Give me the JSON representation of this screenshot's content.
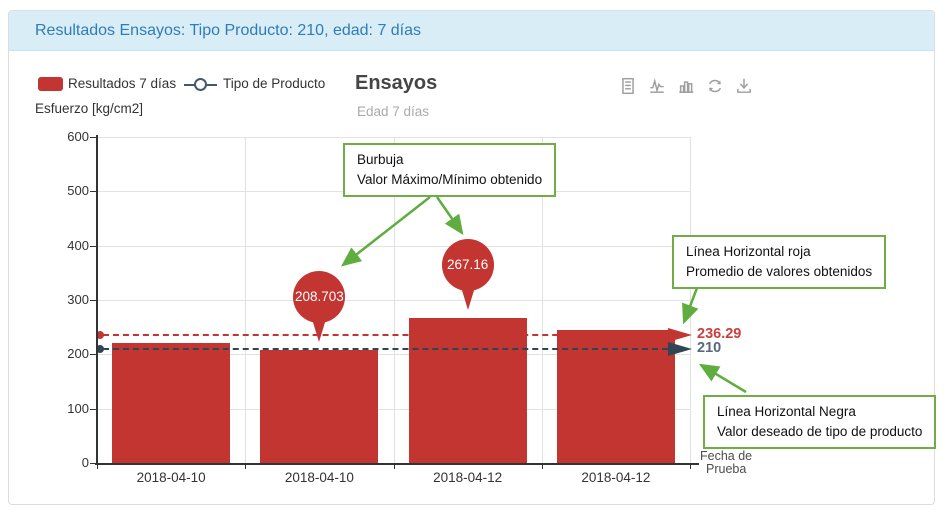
{
  "header": {
    "title": "Resultados Ensayos: Tipo Producto: 210, edad: 7 días"
  },
  "legend": {
    "items": [
      {
        "label": "Resultados 7 días",
        "marker": "bar-swatch",
        "color": "#c23531"
      },
      {
        "label": "Tipo de Producto",
        "marker": "line-circle",
        "color": "#47586e"
      }
    ]
  },
  "chart_header": {
    "title": "Ensayos",
    "subtitle": "Edad 7 días"
  },
  "toolbox": {
    "icons": [
      {
        "name": "data-view"
      },
      {
        "name": "line-chart"
      },
      {
        "name": "bar-chart"
      },
      {
        "name": "restore"
      },
      {
        "name": "save-image"
      }
    ]
  },
  "axes": {
    "y_name": "Esfuerzo [kg/cm2]",
    "x_name_line1": "Fecha de",
    "x_name_line2": "Prueba"
  },
  "chart_data": {
    "type": "bar",
    "title": "Ensayos",
    "subtitle": "Edad 7 días",
    "ylabel": "Esfuerzo [kg/cm2]",
    "xlabel": "Fecha de Prueba",
    "categories": [
      "2018-04-10",
      "2018-04-10",
      "2018-04-12",
      "2018-04-12"
    ],
    "series": [
      {
        "name": "Resultados 7 días",
        "type": "bar",
        "color": "#c23531",
        "values": [
          220,
          208.703,
          267.16,
          245
        ]
      }
    ],
    "markers": [
      {
        "label": "208.703",
        "value": 208.703,
        "category_index": 1
      },
      {
        "label": "267.16",
        "value": 267.16,
        "category_index": 2
      }
    ],
    "reference_lines": [
      {
        "label": "236.29",
        "value": 236.29,
        "color": "#c23531",
        "label_color": "#c9403c",
        "meaning": "Promedio de valores obtenidos"
      },
      {
        "label": "210",
        "value": 210,
        "color": "#2f4554",
        "label_color": "#57687a",
        "meaning": "Valor deseado de tipo de producto"
      }
    ],
    "ylim": [
      0,
      600
    ],
    "yticks": [
      0,
      100,
      200,
      300,
      400,
      500,
      600
    ],
    "grid": true,
    "legend_position": "top-left"
  },
  "annotations": {
    "bubble": {
      "line1": "Burbuja",
      "line2": "Valor Máximo/Mínimo obtenido"
    },
    "red_line": {
      "line1": "Línea Horizontal roja",
      "line2": "Promedio de valores obtenidos"
    },
    "black_line": {
      "line1": "Línea Horizontal Negra",
      "line2": "Valor deseado de tipo de producto"
    }
  }
}
